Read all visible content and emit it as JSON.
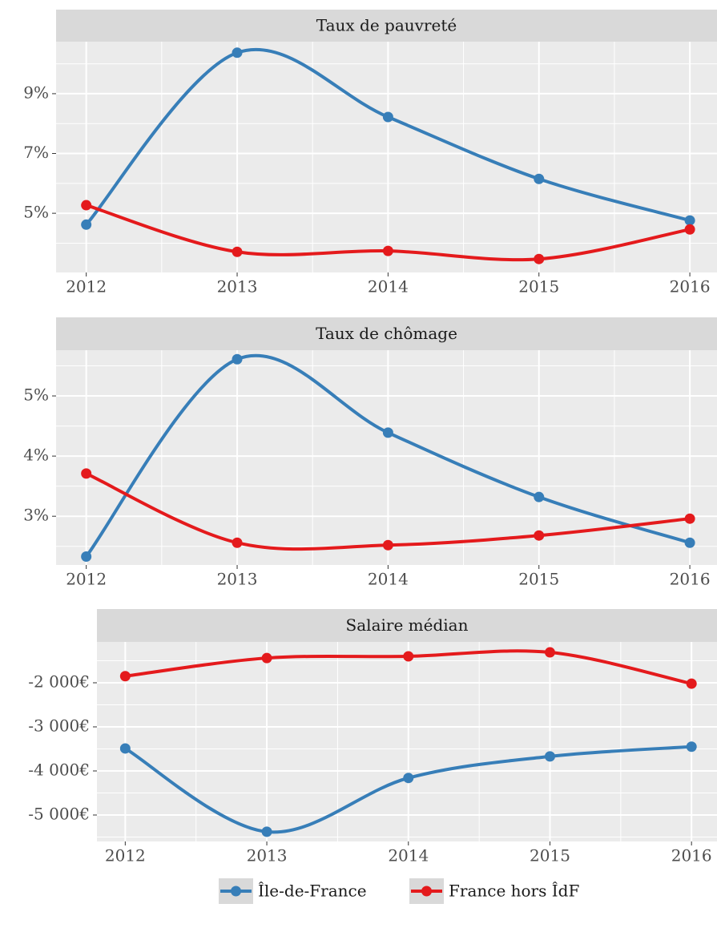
{
  "chart_data": [
    {
      "type": "line",
      "title": "Taux de pauvreté",
      "x": [
        2012,
        2013,
        2014,
        2015,
        2016
      ],
      "xlim": [
        2011.8,
        2016.18
      ],
      "xticks": [
        2012,
        2013,
        2014,
        2015,
        2016
      ],
      "ylim": [
        3.02,
        10.74
      ],
      "yticks": [
        {
          "value": 5,
          "label": "5%"
        },
        {
          "value": 7,
          "label": "7%"
        },
        {
          "value": 9,
          "label": "9%"
        }
      ],
      "grid": true,
      "series": [
        {
          "name": "Île-de-France",
          "color": "#377eb8",
          "values": [
            4.62,
            10.37,
            8.22,
            6.15,
            4.76
          ]
        },
        {
          "name": "France hors ÎdF",
          "color": "#e41a1c",
          "values": [
            5.27,
            3.71,
            3.74,
            3.47,
            4.46
          ]
        }
      ]
    },
    {
      "type": "line",
      "title": "Taux de chômage",
      "x": [
        2012,
        2013,
        2014,
        2015,
        2016
      ],
      "xlim": [
        2011.8,
        2016.18
      ],
      "xticks": [
        2012,
        2013,
        2014,
        2015,
        2016
      ],
      "ylim": [
        2.19,
        5.76
      ],
      "yticks": [
        {
          "value": 3,
          "label": "3%"
        },
        {
          "value": 4,
          "label": "4%"
        },
        {
          "value": 5,
          "label": "5%"
        }
      ],
      "grid": true,
      "series": [
        {
          "color": "#377eb8",
          "values": [
            2.33,
            5.61,
            4.39,
            3.32,
            2.56
          ]
        },
        {
          "color": "#e41a1c",
          "values": [
            3.71,
            2.56,
            2.52,
            2.68,
            2.96
          ]
        }
      ]
    },
    {
      "type": "line",
      "title": "Salaire médian",
      "x": [
        2012,
        2013,
        2014,
        2015,
        2016
      ],
      "xlim": [
        2011.8,
        2016.18
      ],
      "xticks": [
        2012,
        2013,
        2014,
        2015,
        2016
      ],
      "ylim": [
        -5600,
        -1073
      ],
      "yticks": [
        {
          "value": -5000,
          "label": "-5 000€"
        },
        {
          "value": -4000,
          "label": "-4 000€"
        },
        {
          "value": -3000,
          "label": "-3 000€"
        },
        {
          "value": -2000,
          "label": "-2 000€"
        }
      ],
      "grid": true,
      "series": [
        {
          "color": "#377eb8",
          "values": [
            -3490,
            -5380,
            -4160,
            -3670,
            -3450
          ]
        },
        {
          "color": "#e41a1c",
          "values": [
            -1850,
            -1440,
            -1400,
            -1310,
            -2020
          ]
        }
      ]
    }
  ]
}
